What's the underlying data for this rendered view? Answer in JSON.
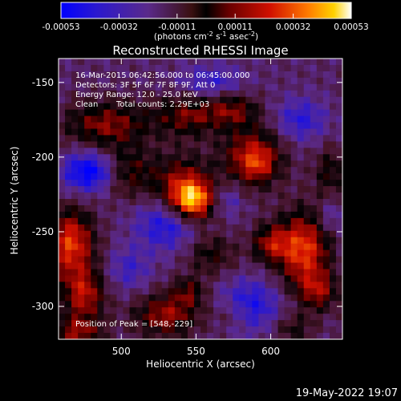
{
  "chart_data": {
    "type": "heatmap",
    "title": "Reconstructed RHESSI Image",
    "xlabel": "Heliocentric X (arcsec)",
    "ylabel": "Heliocentric Y (arcsec)",
    "xlim": [
      458,
      648
    ],
    "ylim": [
      -322,
      -134
    ],
    "xticks": [
      500,
      550,
      600
    ],
    "yticks": [
      -150,
      -200,
      -250,
      -300
    ],
    "colorbar": {
      "range": [
        -0.00053,
        0.00053
      ],
      "tick_labels": [
        "-0.00053",
        "-0.00032",
        "-0.00011",
        "0.00011",
        "0.00032",
        "0.00053"
      ],
      "label": "(photons cm",
      "label_sup1": "-2",
      "label_mid1": " s",
      "label_sup2": "-1",
      "label_mid2": " asec",
      "label_sup3": "-2",
      "label_end": ")"
    },
    "annotations": {
      "time_range": "16-Mar-2015 06:42:56.000 to 06:45:00.000",
      "detectors": "Detectors: 3F 5F 6F 7F 8F 9F, Att 0",
      "energy": "Energy Range: 12.0 - 25.0 keV",
      "method": "Clean",
      "counts": "Total counts: 2.29E+03",
      "peak": "Position of Peak = [548,-229]"
    },
    "blobs": [
      {
        "x": 548,
        "y": -229,
        "sx": 10,
        "sy": 9,
        "a": 1.0
      },
      {
        "x": 540,
        "y": -218,
        "sx": 14,
        "sy": 14,
        "a": 0.55
      },
      {
        "x": 588,
        "y": -200,
        "sx": 14,
        "sy": 14,
        "a": 0.7
      },
      {
        "x": 592,
        "y": -205,
        "sx": 7,
        "sy": 7,
        "a": 0.25
      },
      {
        "x": 622,
        "y": -262,
        "sx": 12,
        "sy": 18,
        "a": 0.85
      },
      {
        "x": 600,
        "y": -258,
        "sx": 9,
        "sy": 9,
        "a": 0.55
      },
      {
        "x": 632,
        "y": -290,
        "sx": 9,
        "sy": 9,
        "a": 0.5
      },
      {
        "x": 490,
        "y": -178,
        "sx": 20,
        "sy": 11,
        "a": 0.55
      },
      {
        "x": 545,
        "y": -172,
        "sx": 16,
        "sy": 10,
        "a": 0.5
      },
      {
        "x": 575,
        "y": -168,
        "sx": 12,
        "sy": 8,
        "a": 0.45
      },
      {
        "x": 466,
        "y": -258,
        "sx": 11,
        "sy": 16,
        "a": 0.85
      },
      {
        "x": 475,
        "y": -292,
        "sx": 10,
        "sy": 12,
        "a": 0.65
      },
      {
        "x": 470,
        "y": -318,
        "sx": 12,
        "sy": 8,
        "a": 0.55
      },
      {
        "x": 530,
        "y": -306,
        "sx": 15,
        "sy": 10,
        "a": 0.6
      },
      {
        "x": 545,
        "y": -290,
        "sx": 8,
        "sy": 7,
        "a": 0.4
      },
      {
        "x": 505,
        "y": -210,
        "sx": 12,
        "sy": 12,
        "a": 0.4
      },
      {
        "x": 560,
        "y": -265,
        "sx": 12,
        "sy": 10,
        "a": 0.35
      },
      {
        "x": 575,
        "y": -305,
        "sx": 10,
        "sy": 8,
        "a": 0.3
      },
      {
        "x": 640,
        "y": -210,
        "sx": 8,
        "sy": 12,
        "a": 0.35
      },
      {
        "x": 615,
        "y": -315,
        "sx": 10,
        "sy": 7,
        "a": 0.3
      },
      {
        "x": 478,
        "y": -210,
        "sx": 12,
        "sy": 9,
        "a": -0.7
      },
      {
        "x": 530,
        "y": -245,
        "sx": 14,
        "sy": 12,
        "a": -0.5
      },
      {
        "x": 585,
        "y": -300,
        "sx": 14,
        "sy": 12,
        "a": -0.55
      },
      {
        "x": 560,
        "y": -150,
        "sx": 15,
        "sy": 8,
        "a": -0.35
      },
      {
        "x": 620,
        "y": -175,
        "sx": 12,
        "sy": 10,
        "a": -0.4
      },
      {
        "x": 505,
        "y": -275,
        "sx": 10,
        "sy": 10,
        "a": -0.3
      },
      {
        "x": 570,
        "y": -228,
        "sx": 8,
        "sy": 8,
        "a": -0.3
      },
      {
        "x": 640,
        "y": -240,
        "sx": 7,
        "sy": 8,
        "a": -0.25
      }
    ],
    "background": -0.35
  },
  "footer": {
    "date": "19-May-2022 19:07"
  }
}
